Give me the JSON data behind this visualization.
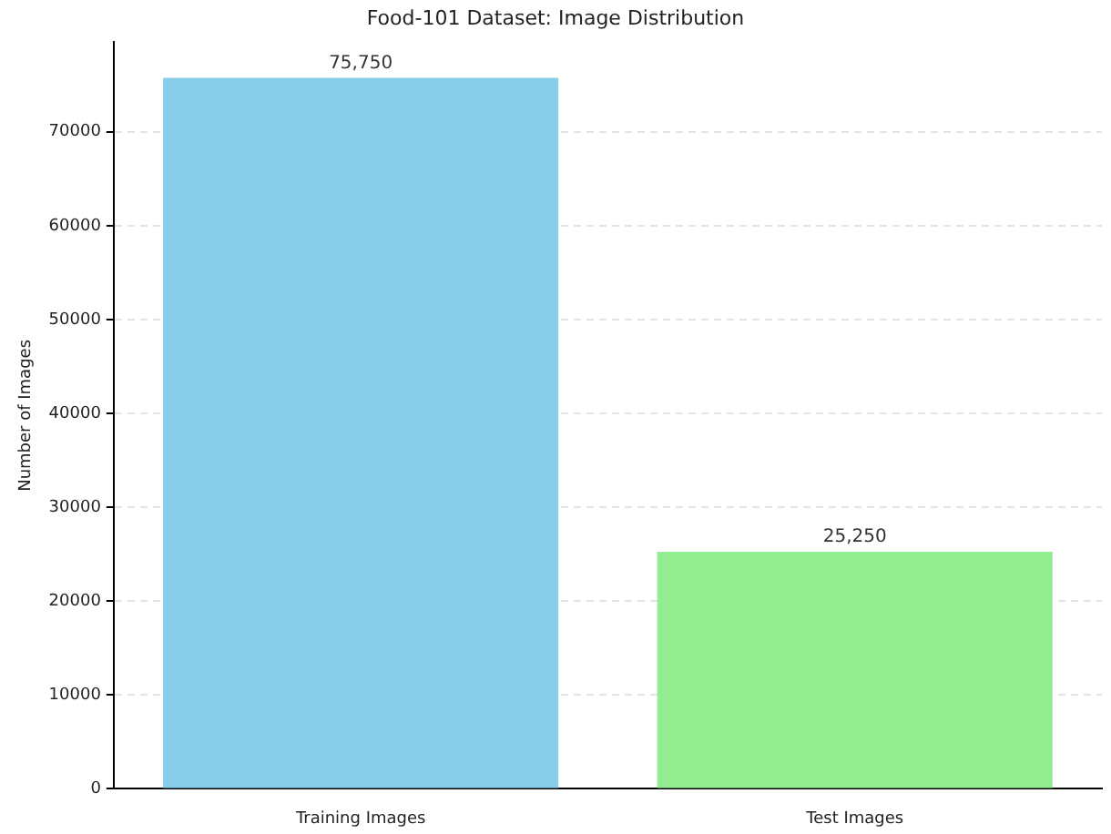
{
  "chart_data": {
    "type": "bar",
    "title": "Food-101 Dataset: Image Distribution",
    "ylabel": "Number of Images",
    "categories": [
      "Training Images",
      "Test Images"
    ],
    "values": [
      75750,
      25250
    ],
    "colors": [
      "#87ceeb",
      "#90ee90"
    ],
    "value_labels": [
      "75,750",
      "25,250"
    ],
    "ylim": [
      0,
      79537
    ],
    "yticks": [
      0,
      10000,
      20000,
      30000,
      40000,
      50000,
      60000,
      70000
    ],
    "grid": "y",
    "legend": false
  }
}
